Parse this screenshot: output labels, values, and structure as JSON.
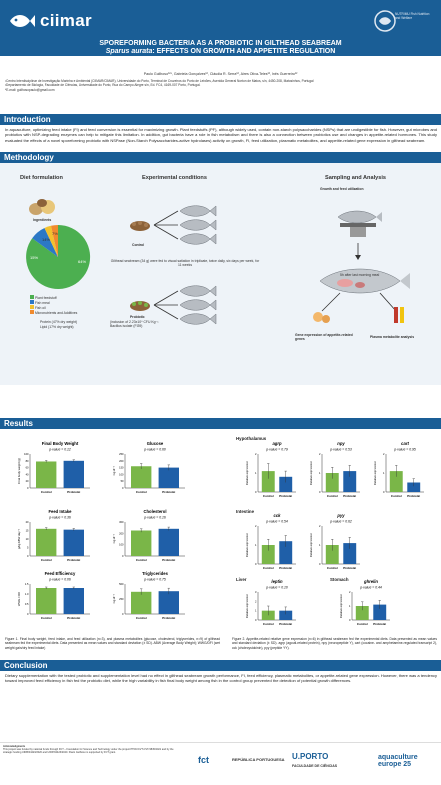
{
  "header": {
    "logo_text": "ciimar",
    "logo_right_text": "NUTRIMU Fish Nutrition and Welfare",
    "title_line1": "SPOREFORMING BACTERIA AS A PROBIOTIC IN GILTHEAD SEABREAM",
    "title_species": "Sparus aurata",
    "title_line2_rest": ": EFFECTS ON GROWTH AND APPETITE REGULATION"
  },
  "authors": "Paulo Guilhoso¹²*, Gabriela Gonçalves¹², Cláudia R. Serra¹², Aires Oliva-Teles¹², Inês Guerreiro¹²",
  "affiliations": [
    "¹Centro Interdisciplinar de Investigação Marinha e Ambiental (CIIMAR/CIMAR), Universidade do Porto, Terminal de Cruzeiros do Porto de Leixões, Avenida General Norton de Matos, s/n, 4450-208, Matosinhos, Portugal",
    "²Departamento de Biologia, Faculdade de Ciências, Universidade do Porto, Rua do Campo Alegre s/n, Ed. FC4, 4169-007 Porto, Portugal.",
    "*E-mail: guilhosopaulo@gmail.com"
  ],
  "sections": {
    "introduction": "Introduction",
    "methodology": "Methodology",
    "results": "Results",
    "conclusion": "Conclusion"
  },
  "introduction_text": "In aquaculture, optimizing feed intake (FI) and feed conversion is essential for maximizing growth. Plant feedstuffs (PF), although widely used, contain non-starch polysaccharides (NSPs) that are undigestible for fish. However, gut microbes and probiotics with NSP-degrading enzymes can help to mitigate this limitation. In addition, gut bacteria have a role in fish metabolism and there is also a connection between probiotics use and changes in appetite-related hormones. This study evaluated the effects of a novel sporeforming probiotic with NSPase (Non-Starch Polysaccharides-active hydrolases) activity on growth, FI, feed utilization, plasmatic metabolites, and appetite-related gene expression in gilthead seabream.",
  "methodology": {
    "diet_title": "Diet formulation",
    "exp_title": "Experimental conditions",
    "sampling_title": "Sampling and Analysis",
    "ingredients_label": "Ingredients",
    "legend": [
      "Plant feedstuff",
      "Fish meal",
      "Fish oil",
      "Micronutrients and Additives"
    ],
    "pie_labels": [
      "64%",
      "15%",
      "14%",
      "7%"
    ],
    "protein_text": "Protein (47% dry weight)",
    "lipid_text": "Lipid (17% dry weight)",
    "control_label": "Control",
    "probiotic_label": "Probiotic",
    "probiotic_detail": "(inclusion of 2.23x10⁸ CFU Kg⁻¹ Bacillus isolate (FI39)",
    "exp_text": "Gilthead seabream (34 g) were fed to visual satiation in triplicate, twice daily, six days per week, for 11 weeks",
    "growth_label": "Growth and feed utilization",
    "after_meal": "5h after last morning meal",
    "gene_label": "Gene expression of appetite-related genes",
    "plasma_label": "Plasma metabolite analysis"
  },
  "colors": {
    "header_blue": "#1a5e96",
    "control_green": "#7ab648",
    "probiotic_blue": "#1f5fa8",
    "pie_green": "#4caf50",
    "pie_blue": "#2c78c6",
    "pie_yellow": "#f2c12e",
    "pie_orange": "#f08a2e"
  },
  "chart_data": [
    {
      "type": "bar",
      "title": "Final Body Weight",
      "pvalue": "p-value = 0.12",
      "ylabel": "Final body weight (g)",
      "categories": [
        "Control",
        "Probiotic"
      ],
      "values": [
        78,
        80
      ],
      "errors": [
        3,
        3
      ],
      "ylim": [
        0,
        100
      ],
      "yticks": [
        "0",
        "20",
        "40",
        "60",
        "80",
        "100"
      ]
    },
    {
      "type": "bar",
      "title": "Glucose",
      "pvalue": "p-value = 0.60",
      "ylabel": "mg dl⁻¹",
      "categories": [
        "Control",
        "Probiotic"
      ],
      "values": [
        160,
        150
      ],
      "errors": [
        20,
        20
      ],
      "ylim": [
        0,
        250
      ],
      "yticks": [
        "0",
        "50",
        "100",
        "150",
        "200",
        "250"
      ]
    },
    {
      "type": "bar",
      "title": "Feed Intake",
      "pvalue": "p-value = 0.36",
      "ylabel": "g/kg ABW day⁻¹",
      "categories": [
        "Control",
        "Probiotic"
      ],
      "values": [
        16,
        15.5
      ],
      "errors": [
        0.7,
        0.7
      ],
      "ylim": [
        0,
        20
      ],
      "yticks": [
        "0",
        "5",
        "10",
        "15",
        "20"
      ]
    },
    {
      "type": "bar",
      "title": "Cholesterol",
      "pvalue": "p-value = 0.16",
      "ylabel": "mg dl⁻¹",
      "categories": [
        "Control",
        "Probiotic"
      ],
      "values": [
        225,
        240
      ],
      "errors": [
        15,
        15
      ],
      "ylim": [
        0,
        300
      ],
      "yticks": [
        "0",
        "100",
        "200",
        "300"
      ]
    },
    {
      "type": "bar",
      "title": "Feed Efficiency",
      "pvalue": "p-value = 0.06",
      "ylabel": "WWG / DFI",
      "categories": [
        "Control",
        "Probiotic"
      ],
      "values": [
        1.3,
        1.3
      ],
      "errors": [
        0.05,
        0.05
      ],
      "ylim": [
        0,
        1.5
      ],
      "yticks": [
        "0",
        "0.5",
        "1.0",
        "1.5"
      ]
    },
    {
      "type": "bar",
      "title": "Triglycerides",
      "pvalue": "p-value = 0.75",
      "ylabel": "mg dl⁻¹",
      "categories": [
        "Control",
        "Probiotic"
      ],
      "values": [
        370,
        380
      ],
      "errors": [
        50,
        50
      ],
      "ylim": [
        0,
        500
      ],
      "yticks": [
        "0",
        "250",
        "500"
      ]
    },
    {
      "type": "bar",
      "title": "agrp",
      "pvalue": "p-value = 0.79",
      "ylabel": "Relative expression",
      "categories": [
        "Control",
        "Probiotic"
      ],
      "values": [
        1.1,
        0.8
      ],
      "errors": [
        0.4,
        0.3
      ],
      "ylim": [
        0,
        2
      ],
      "yticks": [
        "0",
        "1",
        "2"
      ]
    },
    {
      "type": "bar",
      "title": "npy",
      "pvalue": "p-value = 0.53",
      "ylabel": "Relative expression",
      "categories": [
        "Control",
        "Probiotic"
      ],
      "values": [
        1.0,
        1.1
      ],
      "errors": [
        0.3,
        0.3
      ],
      "ylim": [
        0,
        2
      ],
      "yticks": [
        "0",
        "1",
        "2"
      ]
    },
    {
      "type": "bar",
      "title": "cart",
      "pvalue": "p-value = 0.95",
      "ylabel": "Relative expression",
      "categories": [
        "Control",
        "Probiotic"
      ],
      "values": [
        1.1,
        0.5
      ],
      "errors": [
        0.3,
        0.2
      ],
      "ylim": [
        0,
        2
      ],
      "yticks": [
        "0",
        "1",
        "2"
      ]
    },
    {
      "type": "bar",
      "title": "cck",
      "pvalue": "p-value = 0.54",
      "ylabel": "Relative expression",
      "categories": [
        "Control",
        "Probiotic"
      ],
      "values": [
        1.0,
        1.2
      ],
      "errors": [
        0.3,
        0.3
      ],
      "ylim": [
        0,
        2
      ],
      "yticks": [
        "0",
        "1",
        "2"
      ]
    },
    {
      "type": "bar",
      "title": "pyy",
      "pvalue": "p-value = 0.62",
      "ylabel": "Relative expression",
      "categories": [
        "Control",
        "Probiotic"
      ],
      "values": [
        1.0,
        1.1
      ],
      "errors": [
        0.3,
        0.3
      ],
      "ylim": [
        0,
        2
      ],
      "yticks": [
        "0",
        "1",
        "2"
      ]
    },
    {
      "type": "bar",
      "title": "leptin",
      "pvalue": "p-value = 0.10",
      "ylabel": "Relative expression",
      "categories": [
        "Control",
        "Probiotic"
      ],
      "values": [
        1.0,
        1.0
      ],
      "errors": [
        0.5,
        0.4
      ],
      "ylim": [
        0,
        3
      ],
      "yticks": [
        "0",
        "1",
        "2",
        "3"
      ]
    },
    {
      "type": "bar",
      "title": "ghrelin",
      "pvalue": "p-value = 0.44",
      "ylabel": "Relative expression",
      "categories": [
        "Control",
        "Probiotic"
      ],
      "values": [
        1.0,
        1.1
      ],
      "errors": [
        0.3,
        0.3
      ],
      "ylim": [
        0,
        2
      ],
      "yticks": [
        "0",
        "1",
        "2"
      ]
    }
  ],
  "results": {
    "hypothalamus": "Hypothalamus",
    "intestine": "Intestine",
    "liver": "Liver",
    "stomach": "Stomach",
    "fig1_caption": "Figure 1. Final body weight, feed intake, and feed utilization (n=3), and plasma metabolites (glucose, cholesterol, triglycerides, n=9) of gilthead seabream fed the experimental diets. Data presented as mean values and standard deviation (± SD). ABW (Average Body Weight); WWG/DFI (wet weight gain/dry feed intake)",
    "fig2_caption": "Figure 2. Appetite-related relative gene expression (n=6) in gilthead seabream fed the experimental diets. Data presented as mean values and standard deviation (± SD). agrp (agouti-related protein), npy (neuropeptide Y), cart (cocaine- and amphetamine-regulated transcript 2), cck (cholecystokinin), pyy (peptide YY)."
  },
  "conclusion_text": "Dietary supplementation with the tested probiotic and supplementation level had no effect in gilthead seabream growth performance, FI, feed efficiency, plasmatic metabolites, or appetite-related gene expression. However, there was a tendency toward improved feed efficiency in fish fed the probiotic diet, while the high variability in fish final body weight among fish in the control group prevented the detection of potential growth differences.",
  "footer": {
    "ack_title": "Acknowledgments",
    "ack_text": "This project was funded by national funds through FCT – Foundation for Science and Technology under the project PTDC/CVT-CVT/4845/2021 and by the strategic funding UIDB/04423/2020 and UIDP/04423/2020. Paulo Guilhoso is supported by FCT grant.",
    "sponsors": [
      "fct",
      "REPÚBLICA PORTUGUESA",
      "U.PORTO",
      "FACULDADE DE CIÊNCIAS",
      "aquaculture europe 25"
    ]
  }
}
